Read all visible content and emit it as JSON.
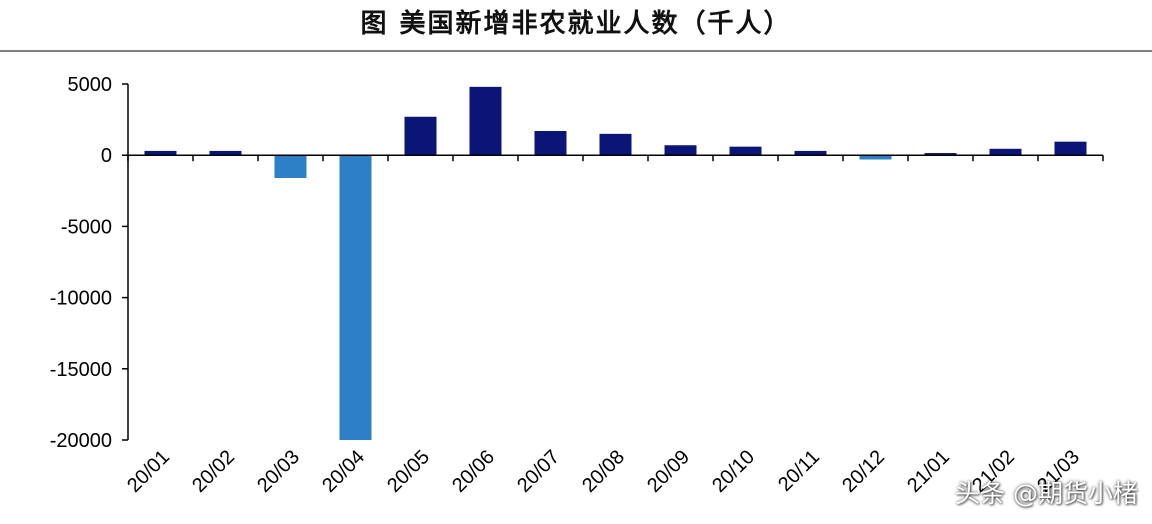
{
  "title": "图  美国新增非农就业人数（千人）",
  "watermark": "头条 @期货小楮",
  "chart_data": {
    "type": "bar",
    "categories": [
      "20/01",
      "20/02",
      "20/03",
      "20/04",
      "20/05",
      "20/06",
      "20/07",
      "20/08",
      "20/09",
      "20/10",
      "20/11",
      "20/12",
      "21/01",
      "21/02",
      "21/03"
    ],
    "values": [
      300,
      300,
      -1600,
      -20000,
      2700,
      4800,
      1700,
      1500,
      700,
      600,
      300,
      -300,
      150,
      450,
      950
    ],
    "ylim": [
      -20000,
      5000
    ],
    "yticks": [
      5000,
      0,
      -5000,
      -10000,
      -15000,
      -20000
    ],
    "colors": {
      "positive": "#0a1577",
      "negative": "#2d7fc6"
    },
    "grid": false,
    "legend": "none"
  }
}
